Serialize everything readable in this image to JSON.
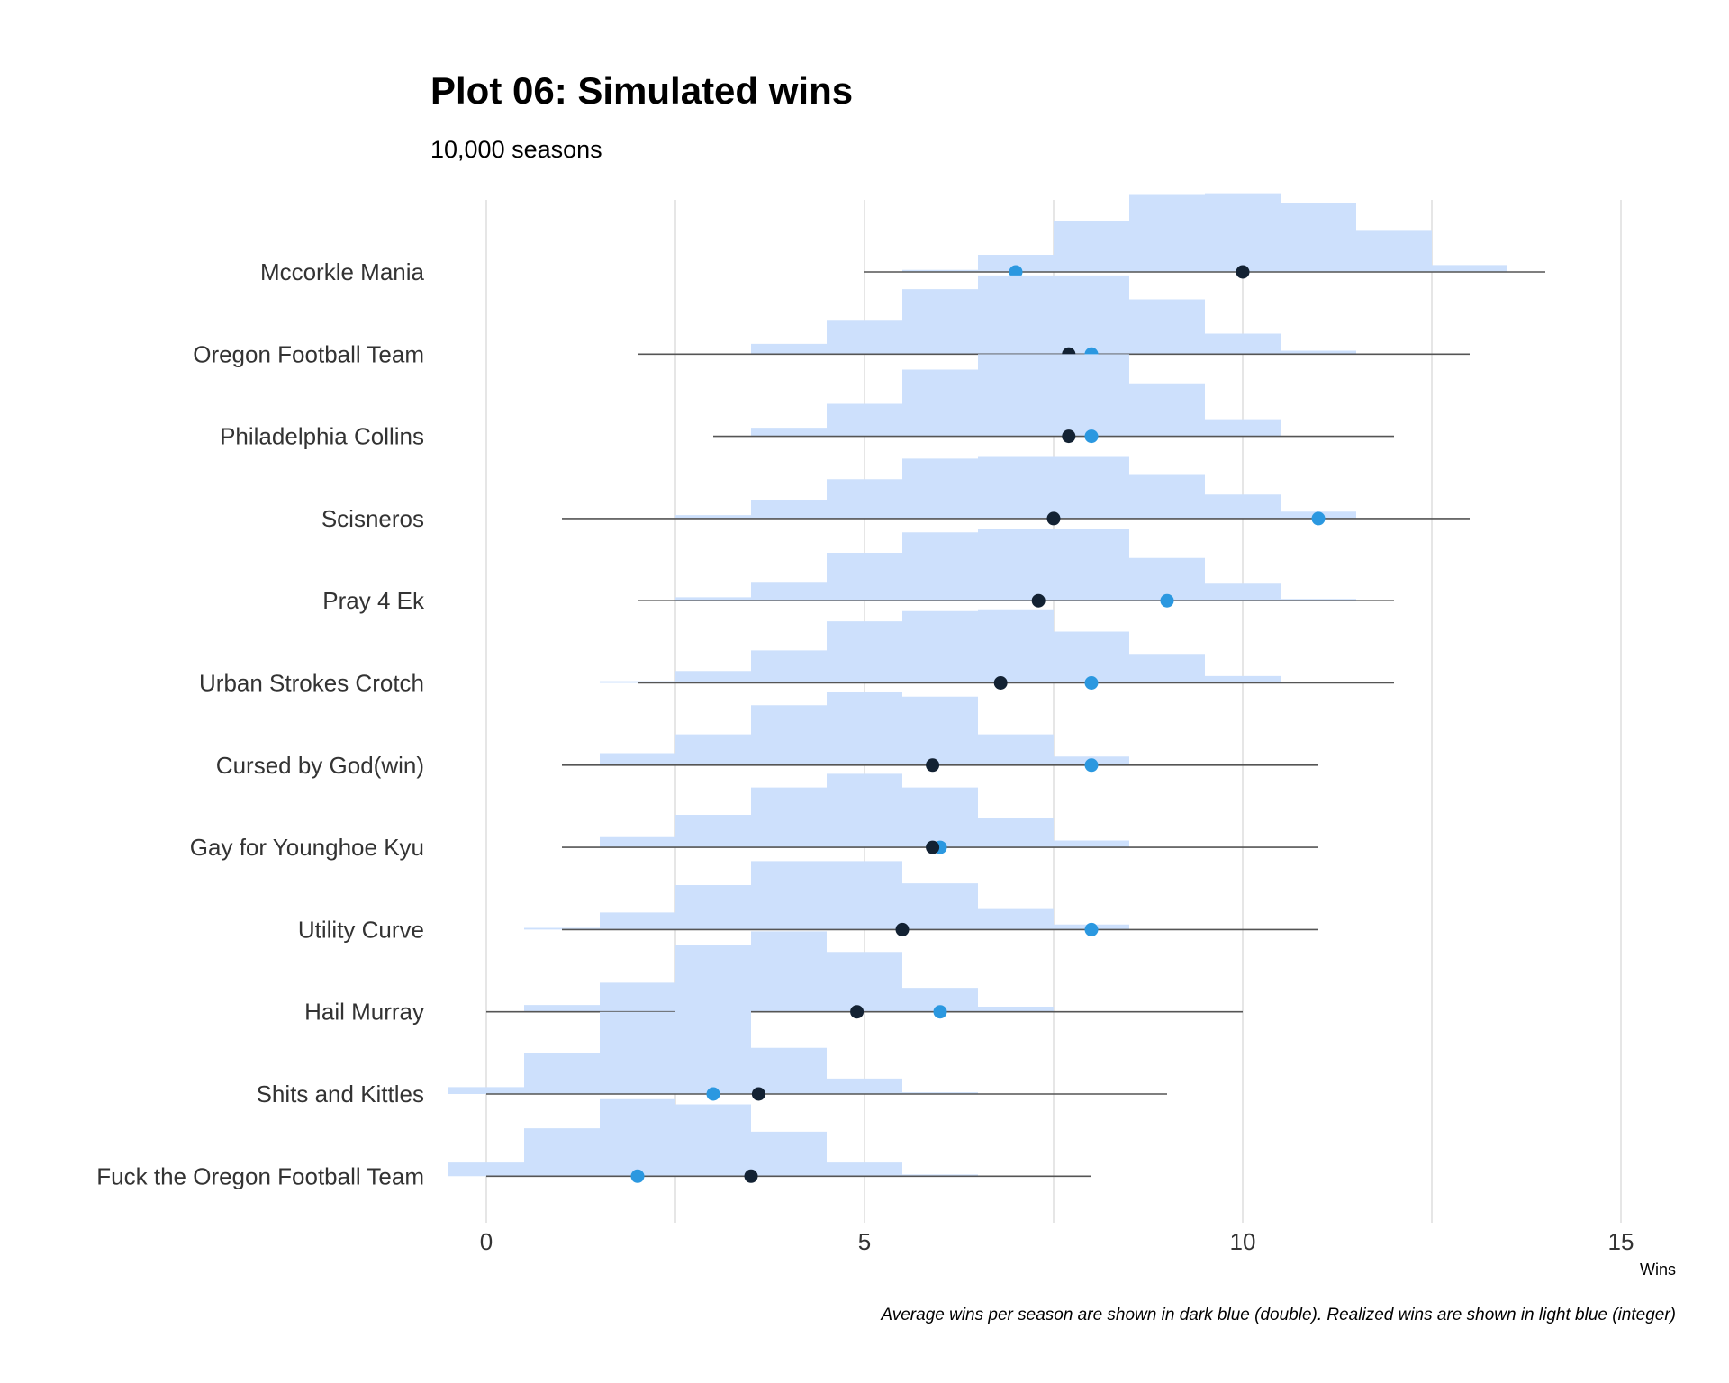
{
  "chart_data": {
    "type": "histogram-ridgeline",
    "title": "Plot 06: Simulated wins",
    "subtitle": "10,000 seasons",
    "xlabel": "Wins",
    "caption": "Average wins per season are shown in dark blue (double). Realized wins are shown in light blue (integer)",
    "xlim": [
      0,
      15
    ],
    "x_ticks": [
      "0",
      "5",
      "10",
      "15"
    ],
    "grid": true,
    "colors": {
      "histogram": "#cde0fc",
      "average": "#132233",
      "realized": "#2b98e0",
      "range_line": "#555555",
      "grid": "#d9d9d9"
    },
    "teams": [
      {
        "name": "Mccorkle Mania",
        "average": 10.0,
        "realized": 7,
        "min": 5,
        "max": 14,
        "hist": [
          [
            6,
            0.012
          ],
          [
            7,
            0.1
          ],
          [
            8,
            0.3
          ],
          [
            9,
            0.45
          ],
          [
            10,
            0.46
          ],
          [
            11,
            0.4
          ],
          [
            12,
            0.24
          ],
          [
            13,
            0.04
          ]
        ]
      },
      {
        "name": "Oregon Football Team",
        "average": 7.7,
        "realized": 8,
        "min": 2,
        "max": 13,
        "hist": [
          [
            4,
            0.06
          ],
          [
            5,
            0.2
          ],
          [
            6,
            0.38
          ],
          [
            7,
            0.46
          ],
          [
            8,
            0.46
          ],
          [
            9,
            0.32
          ],
          [
            10,
            0.12
          ],
          [
            11,
            0.02
          ]
        ]
      },
      {
        "name": "Philadelphia Collins",
        "average": 7.7,
        "realized": 8,
        "min": 3,
        "max": 12,
        "hist": [
          [
            4,
            0.05
          ],
          [
            5,
            0.19
          ],
          [
            6,
            0.39
          ],
          [
            7,
            0.48
          ],
          [
            8,
            0.48
          ],
          [
            9,
            0.31
          ],
          [
            10,
            0.1
          ]
        ]
      },
      {
        "name": "Scisneros",
        "average": 7.5,
        "realized": 11,
        "min": 1,
        "max": 13,
        "hist": [
          [
            3,
            0.02
          ],
          [
            4,
            0.11
          ],
          [
            5,
            0.23
          ],
          [
            6,
            0.35
          ],
          [
            7,
            0.36
          ],
          [
            8,
            0.36
          ],
          [
            9,
            0.26
          ],
          [
            10,
            0.14
          ],
          [
            11,
            0.04
          ]
        ]
      },
      {
        "name": "Pray 4 Ek",
        "average": 7.3,
        "realized": 9,
        "min": 2,
        "max": 12,
        "hist": [
          [
            3,
            0.02
          ],
          [
            4,
            0.11
          ],
          [
            5,
            0.28
          ],
          [
            6,
            0.4
          ],
          [
            7,
            0.42
          ],
          [
            8,
            0.42
          ],
          [
            9,
            0.25
          ],
          [
            10,
            0.1
          ],
          [
            11,
            0.01
          ]
        ]
      },
      {
        "name": "Urban Strokes Crotch",
        "average": 6.8,
        "realized": 8,
        "min": 2,
        "max": 12,
        "hist": [
          [
            2,
            0.01
          ],
          [
            3,
            0.07
          ],
          [
            4,
            0.19
          ],
          [
            5,
            0.36
          ],
          [
            6,
            0.42
          ],
          [
            7,
            0.43
          ],
          [
            8,
            0.3
          ],
          [
            9,
            0.17
          ],
          [
            10,
            0.04
          ]
        ]
      },
      {
        "name": "Cursed by God(win)",
        "average": 5.9,
        "realized": 8,
        "min": 1,
        "max": 11,
        "hist": [
          [
            2,
            0.07
          ],
          [
            3,
            0.18
          ],
          [
            4,
            0.35
          ],
          [
            5,
            0.43
          ],
          [
            6,
            0.4
          ],
          [
            7,
            0.18
          ],
          [
            8,
            0.05
          ]
        ]
      },
      {
        "name": "Gay for Younghoe Kyu",
        "average": 5.9,
        "realized": 6,
        "min": 1,
        "max": 11,
        "hist": [
          [
            2,
            0.06
          ],
          [
            3,
            0.19
          ],
          [
            4,
            0.35
          ],
          [
            5,
            0.43
          ],
          [
            6,
            0.35
          ],
          [
            7,
            0.17
          ],
          [
            8,
            0.04
          ]
        ]
      },
      {
        "name": "Utility Curve",
        "average": 5.5,
        "realized": 8,
        "min": 1,
        "max": 11,
        "hist": [
          [
            1,
            0.01
          ],
          [
            2,
            0.1
          ],
          [
            3,
            0.26
          ],
          [
            4,
            0.4
          ],
          [
            5,
            0.4
          ],
          [
            6,
            0.27
          ],
          [
            7,
            0.12
          ],
          [
            8,
            0.03
          ]
        ]
      },
      {
        "name": "Hail Murray",
        "average": 4.9,
        "realized": 6,
        "min": 0,
        "max": 10,
        "hist": [
          [
            1,
            0.04
          ],
          [
            2,
            0.17
          ],
          [
            3,
            0.39
          ],
          [
            4,
            0.47
          ],
          [
            5,
            0.35
          ],
          [
            6,
            0.14
          ],
          [
            7,
            0.03
          ]
        ]
      },
      {
        "name": "Shits and Kittles",
        "average": 3.6,
        "realized": 3,
        "min": 0,
        "max": 9,
        "hist": [
          [
            0,
            0.04
          ],
          [
            1,
            0.24
          ],
          [
            2,
            0.48
          ],
          [
            3,
            0.49
          ],
          [
            4,
            0.27
          ],
          [
            5,
            0.09
          ],
          [
            6,
            0.01
          ]
        ]
      },
      {
        "name": "Fuck the Oregon Football Team",
        "average": 3.5,
        "realized": 2,
        "min": 0,
        "max": 8,
        "hist": [
          [
            0,
            0.08
          ],
          [
            1,
            0.28
          ],
          [
            2,
            0.45
          ],
          [
            3,
            0.42
          ],
          [
            4,
            0.26
          ],
          [
            5,
            0.08
          ],
          [
            6,
            0.01
          ]
        ]
      }
    ]
  }
}
